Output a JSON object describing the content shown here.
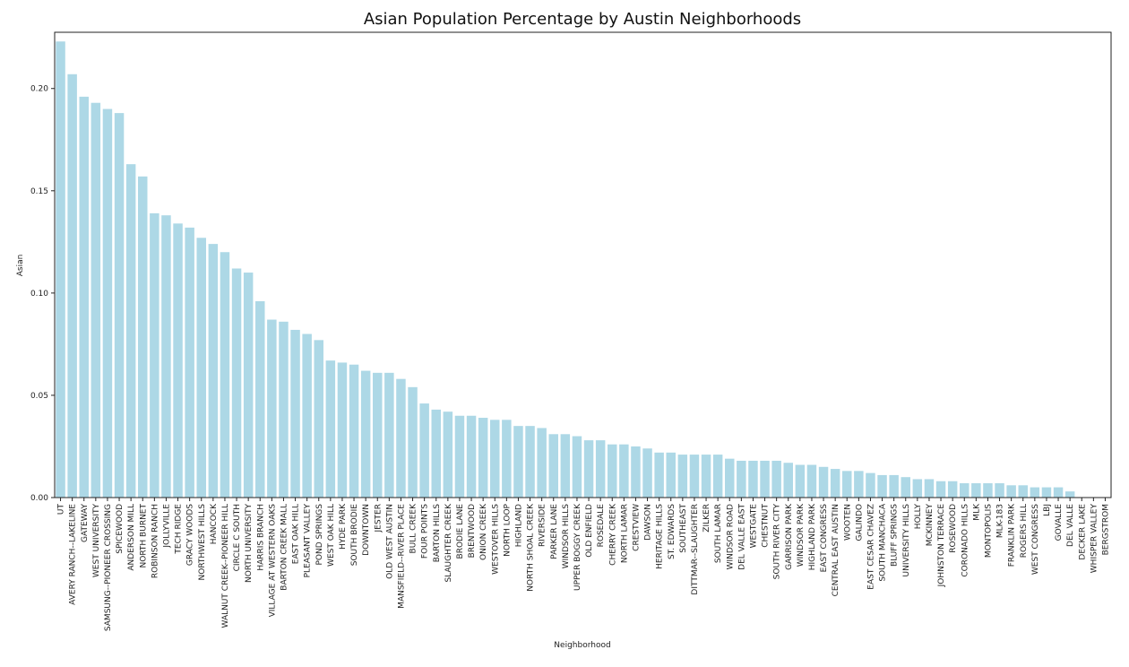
{
  "chart_data": {
    "type": "bar",
    "title": "Asian Population Percentage by Austin Neighborhoods",
    "xlabel": "Neighborhood",
    "ylabel": "Asian",
    "ylim": [
      0,
      0.2275
    ],
    "yticks": [
      "0.00",
      "0.05",
      "0.10",
      "0.15",
      "0.20"
    ],
    "ytick_values": [
      0,
      0.05,
      0.1,
      0.15,
      0.2
    ],
    "bar_color": "#add8e6",
    "grid": false,
    "categories": [
      "UT",
      "AVERY RANCH--LAKELINE",
      "GATEWAY",
      "WEST UNIVERSITY",
      "SAMSUNG--PIONEER CROSSING",
      "SPICEWOOD",
      "ANDERSON MILL",
      "NORTH BURNET",
      "ROBINSON RANCH",
      "JOLLYVILLE",
      "TECH RIDGE",
      "GRACY WOODS",
      "NORTHWEST HILLS",
      "HANCOCK",
      "WALNUT CREEK--PIONEER HILL",
      "CIRCLE C SOUTH",
      "NORTH UNIVERSITY",
      "HARRIS BRANCH",
      "VILLAGE AT WESTERN OAKS",
      "BARTON CREEK MALL",
      "EAST OAK HILL",
      "PLEASANT VALLEY",
      "POND SPRINGS",
      "WEST OAK HILL",
      "HYDE PARK",
      "SOUTH BRODIE",
      "DOWNTOWN",
      "JESTER",
      "OLD WEST AUSTIN",
      "MANSFIELD--RIVER PLACE",
      "BULL CREEK",
      "FOUR POINTS",
      "BARTON HILLS",
      "SLAUGHTER CREEK",
      "BRODIE LANE",
      "BRENTWOOD",
      "ONION CREEK",
      "WESTOVER HILLS",
      "NORTH LOOP",
      "HIGHLAND",
      "NORTH SHOAL CREEK",
      "RIVERSIDE",
      "PARKER LANE",
      "WINDSOR HILLS",
      "UPPER BOGGY CREEK",
      "OLD ENFIELD",
      "ROSEDALE",
      "CHERRY CREEK",
      "NORTH LAMAR",
      "CRESTVIEW",
      "DAWSON",
      "HERITAGE HILLS",
      "ST. EDWARDS",
      "SOUTHEAST",
      "DITTMAR--SLAUGHTER",
      "ZILKER",
      "SOUTH LAMAR",
      "WINDSOR ROAD",
      "DEL VALLE EAST",
      "WESTGATE",
      "CHESTNUT",
      "SOUTH RIVER CITY",
      "GARRISON PARK",
      "WINDSOR PARK",
      "HIGHLAND PARK",
      "EAST CONGRESS",
      "CENTRAL EAST AUSTIN",
      "WOOTEN",
      "GALINDO",
      "EAST CESAR CHAVEZ",
      "SOUTH MANCHACA",
      "BLUFF SPRINGS",
      "UNIVERSITY HILLS",
      "HOLLY",
      "MCKINNEY",
      "JOHNSTON TERRACE",
      "ROSEWOOD",
      "CORONADO HILLS",
      "MLK",
      "MONTOPOLIS",
      "MLK-183",
      "FRANKLIN PARK",
      "ROGERS HILL",
      "WEST CONGRESS",
      "LBJ",
      "GOVALLE",
      "DEL VALLE",
      "DECKER LAKE",
      "WHISPER VALLEY",
      "BERGSTROM"
    ],
    "values": [
      0.223,
      0.207,
      0.196,
      0.193,
      0.19,
      0.188,
      0.163,
      0.157,
      0.139,
      0.138,
      0.134,
      0.132,
      0.127,
      0.124,
      0.12,
      0.112,
      0.11,
      0.096,
      0.087,
      0.086,
      0.082,
      0.08,
      0.077,
      0.067,
      0.066,
      0.065,
      0.062,
      0.061,
      0.061,
      0.058,
      0.054,
      0.046,
      0.043,
      0.042,
      0.04,
      0.04,
      0.039,
      0.038,
      0.038,
      0.035,
      0.035,
      0.034,
      0.031,
      0.031,
      0.03,
      0.028,
      0.028,
      0.026,
      0.026,
      0.025,
      0.024,
      0.022,
      0.022,
      0.021,
      0.021,
      0.021,
      0.021,
      0.019,
      0.018,
      0.018,
      0.018,
      0.018,
      0.017,
      0.016,
      0.016,
      0.015,
      0.014,
      0.013,
      0.013,
      0.012,
      0.011,
      0.011,
      0.01,
      0.009,
      0.009,
      0.008,
      0.008,
      0.007,
      0.007,
      0.007,
      0.007,
      0.006,
      0.006,
      0.005,
      0.005,
      0.005,
      0.003,
      0.0,
      0.0,
      0.0
    ]
  }
}
